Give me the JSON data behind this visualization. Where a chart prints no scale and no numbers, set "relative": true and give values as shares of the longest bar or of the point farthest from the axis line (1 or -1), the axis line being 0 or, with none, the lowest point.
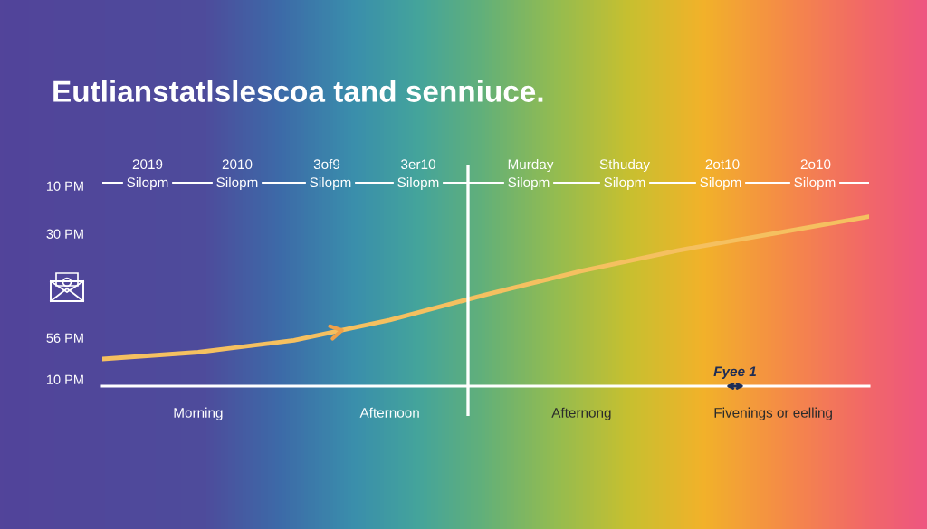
{
  "chart_data": {
    "type": "line",
    "title": "Eutlianstatlslescoa tand senniuce.",
    "relative": true,
    "categories": [
      null,
      "Morning",
      null,
      "Afternoon",
      null,
      "Afternong",
      null,
      "Fivenings or eelling",
      null
    ],
    "series": [
      {
        "color": "#f5c060",
        "values": [
          0.16,
          0.2,
          0.27,
          0.39,
          0.54,
          0.68,
          0.8,
          0.9,
          1.0
        ]
      }
    ],
    "ref_lines": [
      {
        "axis": "y",
        "value": 1.2,
        "color": "#ffffff"
      }
    ],
    "annotations": [
      "2019",
      "2010",
      "3of9",
      "3er10",
      "Murday",
      "Sthuday",
      "2ot10",
      "2o10",
      "Silopm",
      "Silopm",
      "Silopm",
      "Silopm",
      "Silopm",
      "Silopm",
      "Silopm",
      "Silopm",
      "10 PM",
      "30 PM",
      "56 PM",
      "10 PM",
      "Fyee 1"
    ],
    "grid": false,
    "marker": "none",
    "line_style": "solid"
  }
}
